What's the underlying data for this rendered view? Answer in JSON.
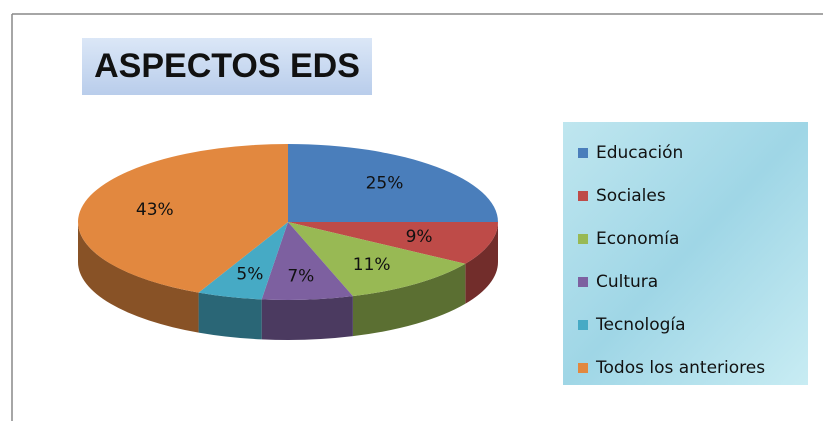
{
  "chart_data": {
    "type": "pie",
    "title": "ASPECTOS EDS",
    "categories": [
      "Educación",
      "Sociales",
      "Economía",
      "Cultura",
      "Tecnología",
      "Todos los anteriores"
    ],
    "values": [
      25,
      9,
      11,
      7,
      5,
      43
    ],
    "value_labels": [
      "25%",
      "9%",
      "11%",
      "7%",
      "5%",
      "43%"
    ],
    "colors": [
      "#4a7ebb",
      "#be4b48",
      "#98b954",
      "#7d60a0",
      "#46aac5",
      "#e2883f"
    ],
    "legend": "right"
  }
}
